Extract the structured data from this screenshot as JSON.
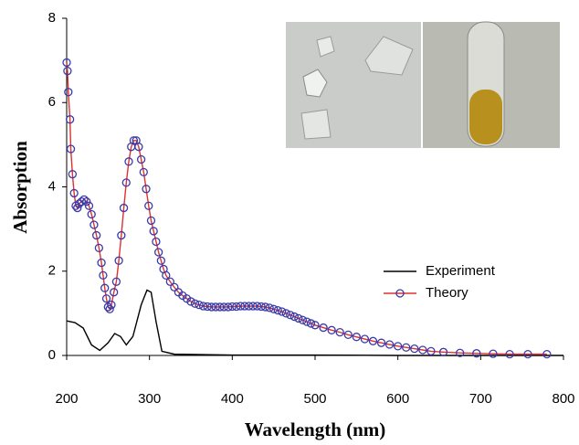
{
  "chart_data": {
    "type": "line",
    "xlabel": "Wavelength (nm)",
    "ylabel": "Absorption",
    "xlim": [
      200,
      800
    ],
    "ylim": [
      0,
      8
    ],
    "xticks": [
      200,
      300,
      400,
      500,
      600,
      700,
      800
    ],
    "yticks": [
      0,
      2,
      4,
      6,
      8
    ],
    "legend": "right",
    "series": [
      {
        "name": "Experiment",
        "color": "#000000",
        "marker": false,
        "x": [
          200,
          210,
          220,
          230,
          240,
          250,
          258,
          265,
          272,
          280,
          290,
          297,
          302,
          308,
          315,
          330,
          400,
          500,
          600,
          800
        ],
        "values": [
          0.82,
          0.78,
          0.65,
          0.25,
          0.12,
          0.3,
          0.52,
          0.45,
          0.25,
          0.45,
          1.2,
          1.55,
          1.5,
          0.8,
          0.1,
          0.03,
          0.01,
          0.01,
          0,
          0
        ]
      },
      {
        "name": "Theory",
        "color": "#e03030",
        "marker": true,
        "marker_color": "#3a3aa8",
        "x": [
          200,
          201,
          202,
          204,
          205,
          207,
          209,
          211,
          213,
          215,
          218,
          221,
          224,
          227,
          230,
          233,
          236,
          239,
          242,
          244,
          246,
          248,
          250,
          252,
          254,
          257,
          260,
          263,
          266,
          269,
          272,
          275,
          278,
          281,
          284,
          287,
          290,
          293,
          296,
          299,
          302,
          305,
          308,
          311,
          314,
          317,
          320,
          325,
          330,
          335,
          340,
          345,
          350,
          355,
          360,
          365,
          370,
          375,
          380,
          385,
          390,
          395,
          400,
          405,
          410,
          415,
          420,
          425,
          430,
          435,
          440,
          445,
          450,
          455,
          460,
          465,
          470,
          475,
          480,
          485,
          490,
          495,
          500,
          510,
          520,
          530,
          540,
          550,
          560,
          570,
          580,
          590,
          600,
          610,
          620,
          630,
          640,
          655,
          675,
          695,
          715,
          735,
          757,
          780
        ],
        "values": [
          6.95,
          6.75,
          6.25,
          5.6,
          4.9,
          4.3,
          3.85,
          3.55,
          3.5,
          3.6,
          3.65,
          3.7,
          3.65,
          3.55,
          3.35,
          3.1,
          2.85,
          2.55,
          2.2,
          1.9,
          1.6,
          1.35,
          1.15,
          1.1,
          1.2,
          1.5,
          1.75,
          2.25,
          2.85,
          3.5,
          4.1,
          4.6,
          4.95,
          5.1,
          5.1,
          4.95,
          4.65,
          4.35,
          3.95,
          3.55,
          3.2,
          2.95,
          2.7,
          2.45,
          2.25,
          2.05,
          1.9,
          1.75,
          1.62,
          1.5,
          1.42,
          1.35,
          1.28,
          1.23,
          1.2,
          1.17,
          1.16,
          1.15,
          1.15,
          1.15,
          1.15,
          1.15,
          1.16,
          1.16,
          1.17,
          1.17,
          1.17,
          1.17,
          1.17,
          1.16,
          1.15,
          1.13,
          1.1,
          1.07,
          1.04,
          1.0,
          0.96,
          0.92,
          0.88,
          0.84,
          0.8,
          0.76,
          0.72,
          0.66,
          0.6,
          0.55,
          0.49,
          0.44,
          0.39,
          0.34,
          0.3,
          0.26,
          0.22,
          0.19,
          0.16,
          0.13,
          0.1,
          0.08,
          0.06,
          0.05,
          0.04,
          0.03,
          0.03,
          0.03
        ]
      }
    ]
  }
}
